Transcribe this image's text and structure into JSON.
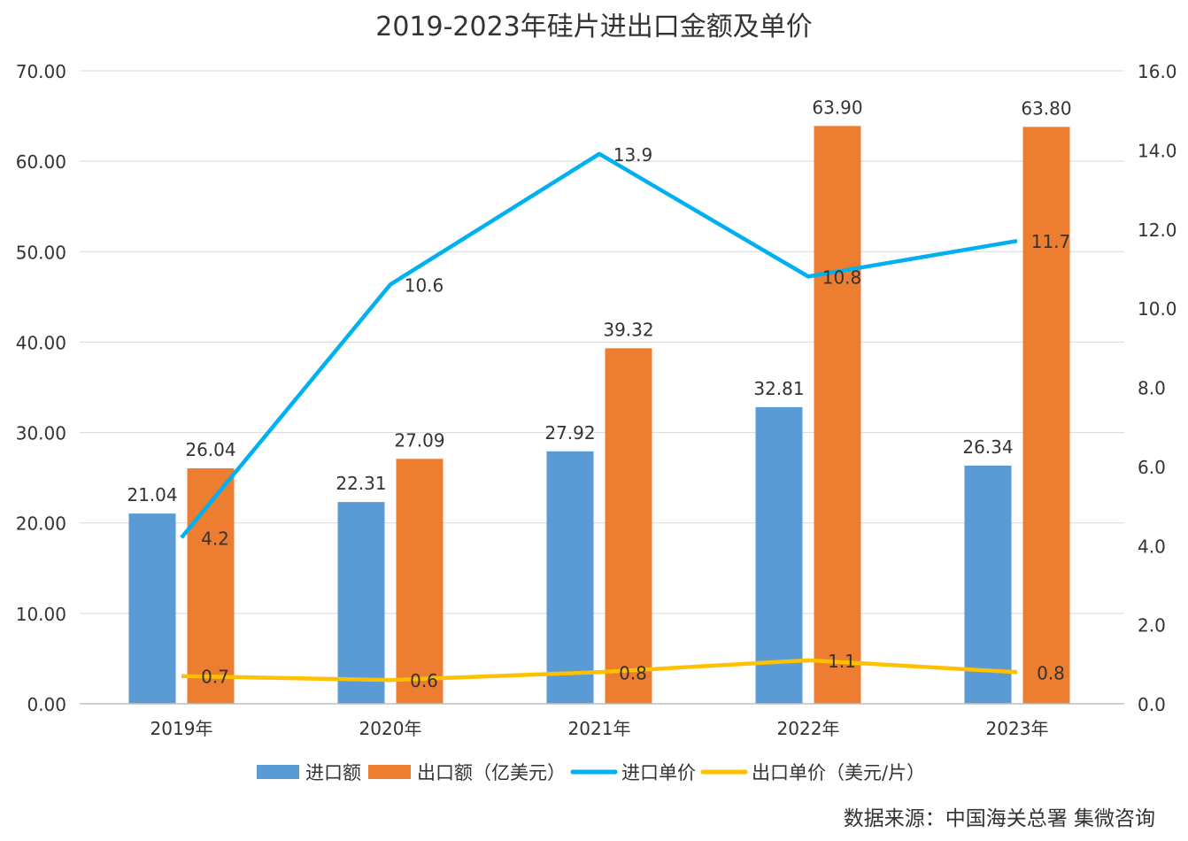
{
  "chart_data": {
    "type": "bar",
    "title": "2019-2023年硅片进出口金额及单价",
    "categories": [
      "2019年",
      "2020年",
      "2021年",
      "2022年",
      "2023年"
    ],
    "y_left": {
      "range": [
        0,
        70
      ],
      "ticks": [
        "0.00",
        "10.00",
        "20.00",
        "30.00",
        "40.00",
        "50.00",
        "60.00",
        "70.00"
      ]
    },
    "y_right": {
      "range": [
        0,
        16
      ],
      "ticks": [
        "0.0",
        "2.0",
        "4.0",
        "6.0",
        "8.0",
        "10.0",
        "12.0",
        "14.0",
        "16.0"
      ]
    },
    "grid": true,
    "legend_placement": "bottom",
    "series": [
      {
        "name": "进口额",
        "kind": "bar",
        "axis": "left",
        "color": "#5b9bd5",
        "values": [
          21.04,
          22.31,
          27.92,
          32.81,
          26.34
        ],
        "labels": [
          "21.04",
          "22.31",
          "27.92",
          "32.81",
          "26.34"
        ]
      },
      {
        "name": "出口额（亿美元）",
        "kind": "bar",
        "axis": "left",
        "color": "#ed7d31",
        "values": [
          26.04,
          27.09,
          39.32,
          63.9,
          63.8
        ],
        "labels": [
          "26.04",
          "27.09",
          "39.32",
          "63.90",
          "63.80"
        ]
      },
      {
        "name": "进口单价",
        "kind": "line",
        "axis": "right",
        "color": "#00b0f0",
        "values": [
          4.2,
          10.6,
          13.9,
          10.8,
          11.7
        ],
        "labels": [
          "4.2",
          "10.6",
          "13.9",
          "10.8",
          "11.7"
        ]
      },
      {
        "name": "出口单价（美元/片）",
        "kind": "line",
        "axis": "right",
        "color": "#ffc000",
        "values": [
          0.7,
          0.6,
          0.8,
          1.1,
          0.8
        ],
        "labels": [
          "0.7",
          "0.6",
          "0.8",
          "1.1",
          "0.8"
        ]
      }
    ],
    "source": "数据来源：中国海关总署  集微咨询"
  }
}
